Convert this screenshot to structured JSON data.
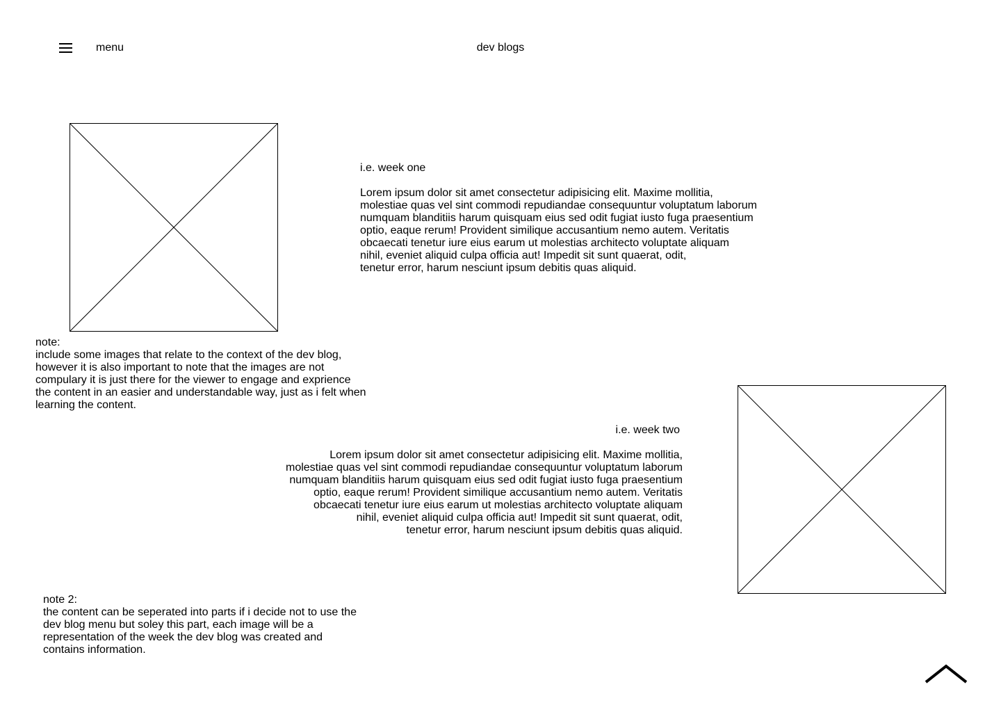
{
  "header": {
    "menu_label": "menu",
    "site_title": "dev blogs"
  },
  "icons": {
    "menu": "hamburger-menu-icon",
    "image_placeholder": "image-placeholder-icon",
    "scroll_top": "chevron-up-icon"
  },
  "week_one": {
    "heading": "i.e. week one",
    "body_lines": [
      "Lorem ipsum dolor sit amet consectetur adipisicing elit. Maxime mollitia,",
      "molestiae quas vel sint commodi repudiandae consequuntur voluptatum laborum",
      "numquam blanditiis harum quisquam eius sed odit fugiat iusto fuga praesentium",
      "optio, eaque rerum! Provident similique accusantium nemo autem. Veritatis",
      "obcaecati tenetur iure eius earum ut molestias architecto voluptate aliquam",
      "nihil, eveniet aliquid culpa officia aut! Impedit sit sunt quaerat, odit,",
      "tenetur error, harum nesciunt ipsum debitis quas aliquid."
    ]
  },
  "note_one": {
    "lines": [
      "note:",
      "include some images that relate to the context of the dev blog,",
      "however it is also important to note that the images are not",
      "compulary it is just there for the viewer to engage and exprience",
      "the content in an easier and understandable way, just as i felt when",
      "learning the content."
    ]
  },
  "week_two": {
    "heading": "i.e. week two",
    "body_lines": [
      "Lorem ipsum dolor sit amet consectetur adipisicing elit. Maxime mollitia,",
      "molestiae quas vel sint commodi repudiandae consequuntur voluptatum laborum",
      "numquam blanditiis harum quisquam eius sed odit fugiat iusto fuga praesentium",
      "optio, eaque rerum! Provident similique accusantium nemo autem. Veritatis",
      "obcaecati tenetur iure eius earum ut molestias architecto voluptate aliquam",
      "nihil, eveniet aliquid culpa officia aut! Impedit sit sunt quaerat, odit,",
      "tenetur error, harum nesciunt ipsum debitis quas aliquid."
    ]
  },
  "note_two": {
    "lines": [
      "note 2:",
      "the content can be seperated into parts if i decide not to use the",
      "dev blog menu but soley this part, each image will be a",
      "representation of the week the dev blog was created and",
      "contains information."
    ]
  }
}
